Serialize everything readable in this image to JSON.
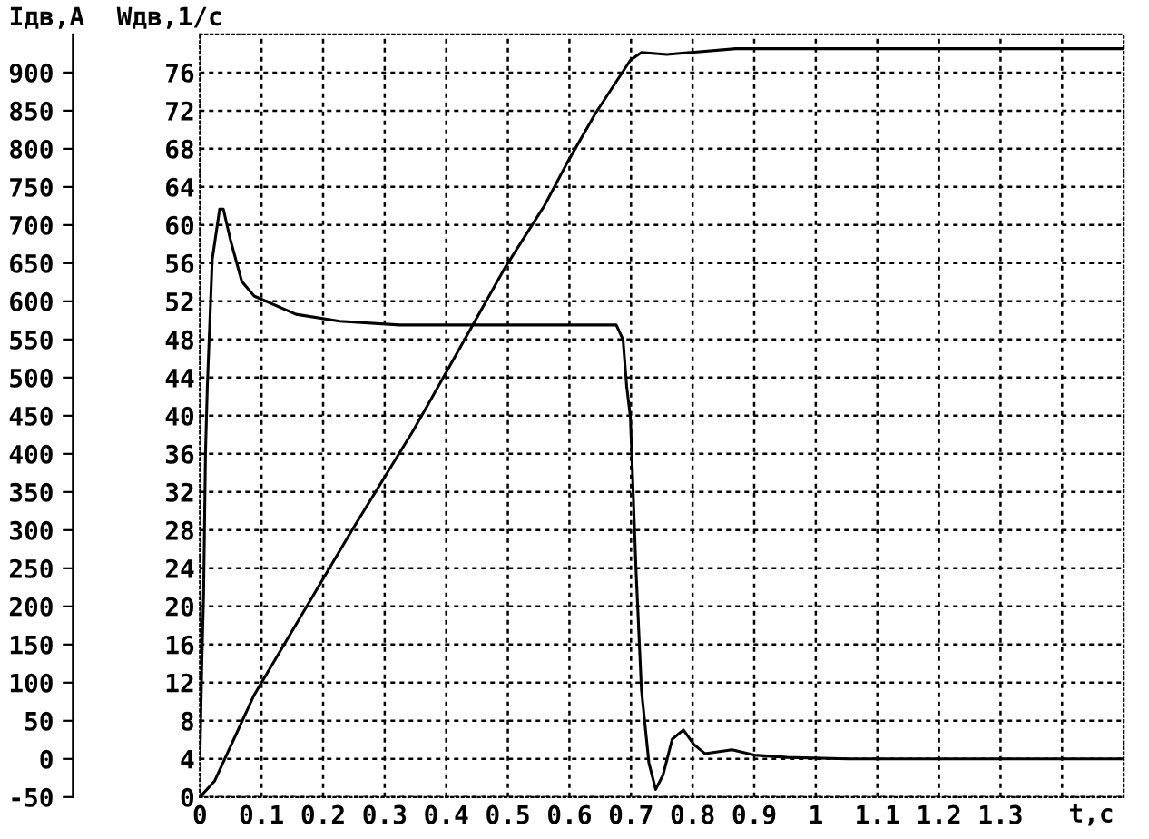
{
  "chart_data": {
    "type": "line",
    "xlabel": "t,с",
    "ylabel": "Iдв,A",
    "y2label": "Wдв,1/с",
    "xlim": [
      0,
      1.5
    ],
    "xticks": [
      0,
      0.1,
      0.2,
      0.3,
      0.4,
      0.5,
      0.6,
      0.7,
      0.8,
      0.9,
      1,
      1.1,
      1.2,
      1.3,
      {
        "value": 1.4,
        "label": null
      }
    ],
    "ylim": [
      -50,
      950
    ],
    "yticks": [
      -50,
      0,
      50,
      100,
      150,
      200,
      250,
      300,
      350,
      400,
      450,
      500,
      550,
      600,
      650,
      700,
      750,
      800,
      850,
      900
    ],
    "y2lim": [
      0,
      80
    ],
    "y2ticks": [
      0,
      4,
      8,
      12,
      16,
      20,
      24,
      28,
      32,
      36,
      40,
      44,
      48,
      52,
      56,
      60,
      64,
      68,
      72,
      76
    ],
    "grid": true,
    "line_style": "solid",
    "marker": "none",
    "series": [
      {
        "color": "#000000",
        "axis": "y",
        "x": [
          0,
          0.003,
          0.006,
          0.009,
          0.012,
          0.02,
          0.032,
          0.038,
          0.05,
          0.068,
          0.088,
          0.156,
          0.227,
          0.324,
          0.676,
          0.687,
          0.693,
          0.699,
          0.708,
          0.717,
          0.729,
          0.74,
          0.752,
          0.767,
          0.785,
          0.802,
          0.82,
          0.864,
          0.9,
          0.953,
          1.053,
          1.5
        ],
        "values": [
          0,
          121,
          217,
          400,
          488,
          655,
          721,
          721,
          679,
          626,
          607,
          583,
          574,
          569,
          569,
          550,
          488,
          448,
          250,
          90,
          -5,
          -40,
          -21,
          26,
          38,
          19,
          7,
          12,
          5,
          2,
          0,
          0
        ]
      },
      {
        "color": "#000000",
        "axis": "y2",
        "x": [
          0,
          0.024,
          0.088,
          0.245,
          0.345,
          0.375,
          0.496,
          0.56,
          0.596,
          0.643,
          0.699,
          0.717,
          0.758,
          0.796,
          0.87,
          1.5
        ],
        "values": [
          0,
          1.7,
          10.7,
          27.8,
          38.3,
          41.7,
          55.6,
          62.1,
          66.5,
          71.8,
          77.3,
          78.1,
          77.9,
          78.1,
          78.5,
          78.5
        ]
      }
    ]
  }
}
